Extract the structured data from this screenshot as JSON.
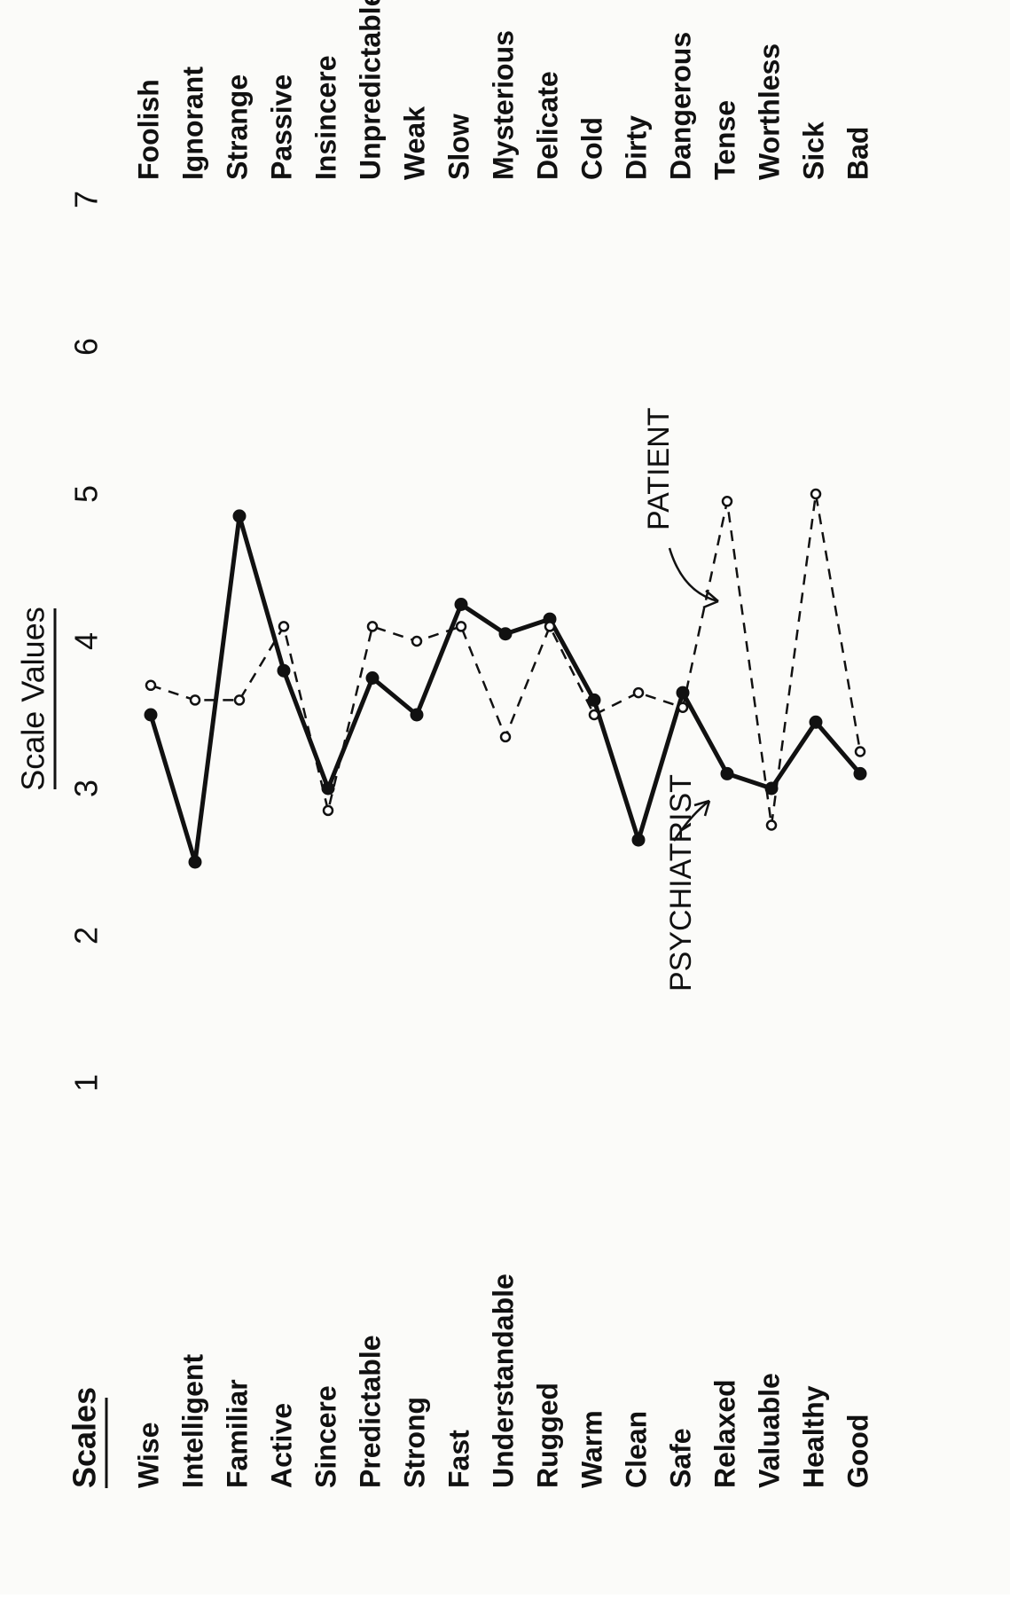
{
  "chart_data": {
    "type": "line",
    "orientation": "rotated",
    "axis_title": "Scale Values",
    "scale_header": "Scales",
    "ticks": [
      1,
      2,
      3,
      4,
      5,
      6,
      7
    ],
    "xlim": [
      1,
      7
    ],
    "categories": [
      "Wise",
      "Intelligent",
      "Familiar",
      "Active",
      "Sincere",
      "Predictable",
      "Strong",
      "Fast",
      "Understandable",
      "Rugged",
      "Warm",
      "Clean",
      "Safe",
      "Relaxed",
      "Valuable",
      "Healthy",
      "Good"
    ],
    "categories_right": [
      "Foolish",
      "Ignorant",
      "Strange",
      "Passive",
      "Insincere",
      "Unpredictable",
      "Weak",
      "Slow",
      "Mysterious",
      "Delicate",
      "Cold",
      "Dirty",
      "Dangerous",
      "Tense",
      "Worthless",
      "Sick",
      "Bad"
    ],
    "series": [
      {
        "name": "PSYCHIATRIST",
        "style": "solid",
        "marker": "filled",
        "color": "#111111",
        "values": [
          3.5,
          2.5,
          4.85,
          3.8,
          3.0,
          3.75,
          3.5,
          4.25,
          4.05,
          4.15,
          3.6,
          2.65,
          3.65,
          3.1,
          3.0,
          3.45,
          3.1
        ]
      },
      {
        "name": "PATIENT",
        "style": "dashed",
        "marker": "open",
        "color": "#111111",
        "values": [
          3.7,
          3.6,
          3.6,
          4.1,
          2.85,
          4.1,
          4.0,
          4.1,
          3.35,
          4.1,
          3.5,
          3.65,
          3.55,
          4.95,
          2.75,
          5.0,
          3.25
        ]
      }
    ],
    "grid": false,
    "legend": "none"
  }
}
